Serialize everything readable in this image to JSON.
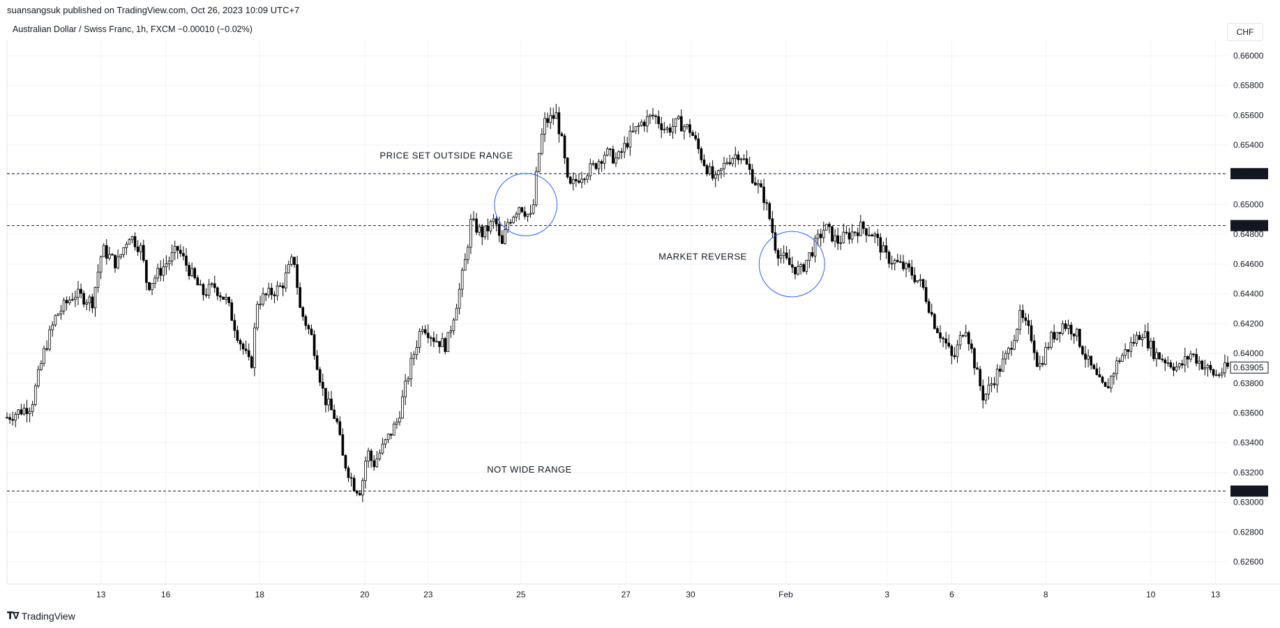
{
  "header": {
    "publisher": "suansangsuk published on TradingView.com, Oct 26, 2023 10:09 UTC+7",
    "symbol_line": "Australian Dollar / Swiss Franc, 1h, FXCM  −0.00010 (−0.02%)"
  },
  "currency_button": "CHF",
  "footer": {
    "brand": "TradingView",
    "logo_icon": "tradingview-logo-icon"
  },
  "chart_data": {
    "type": "candlestick",
    "title": "Australian Dollar / Swiss Franc, 1h, FXCM",
    "ylim": [
      0.6245,
      0.6615
    ],
    "y_ticks": [
      "0.62600",
      "0.62800",
      "0.63000",
      "0.63200",
      "0.63400",
      "0.63600",
      "0.63800",
      "0.64000",
      "0.64200",
      "0.64400",
      "0.64600",
      "0.64800",
      "0.65000",
      "0.65200",
      "0.65400",
      "0.65600",
      "0.65800",
      "0.66000"
    ],
    "x_ticks": [
      "13",
      "16",
      "18",
      "20",
      "23",
      "25",
      "27",
      "30",
      "Feb",
      "3",
      "6",
      "8",
      "10",
      "13"
    ],
    "x_tick_positions": [
      0.077,
      0.13,
      0.207,
      0.293,
      0.345,
      0.421,
      0.507,
      0.56,
      0.638,
      0.721,
      0.774,
      0.851,
      0.937,
      0.99
    ],
    "grid": true,
    "close_path": [
      [
        0.0,
        0.6357
      ],
      [
        0.02,
        0.6365
      ],
      [
        0.03,
        0.64
      ],
      [
        0.04,
        0.6425
      ],
      [
        0.055,
        0.644
      ],
      [
        0.07,
        0.6435
      ],
      [
        0.078,
        0.647
      ],
      [
        0.09,
        0.646
      ],
      [
        0.1,
        0.648
      ],
      [
        0.11,
        0.647
      ],
      [
        0.115,
        0.6445
      ],
      [
        0.13,
        0.646
      ],
      [
        0.14,
        0.647
      ],
      [
        0.15,
        0.6455
      ],
      [
        0.16,
        0.644
      ],
      [
        0.17,
        0.6445
      ],
      [
        0.18,
        0.6435
      ],
      [
        0.19,
        0.641
      ],
      [
        0.2,
        0.639
      ],
      [
        0.205,
        0.6435
      ],
      [
        0.225,
        0.6445
      ],
      [
        0.235,
        0.6465
      ],
      [
        0.24,
        0.643
      ],
      [
        0.25,
        0.641
      ],
      [
        0.26,
        0.637
      ],
      [
        0.27,
        0.6355
      ],
      [
        0.275,
        0.633
      ],
      [
        0.285,
        0.631
      ],
      [
        0.29,
        0.6308
      ],
      [
        0.295,
        0.6335
      ],
      [
        0.3,
        0.6325
      ],
      [
        0.31,
        0.634
      ],
      [
        0.32,
        0.6355
      ],
      [
        0.33,
        0.639
      ],
      [
        0.34,
        0.642
      ],
      [
        0.35,
        0.641
      ],
      [
        0.36,
        0.6405
      ],
      [
        0.37,
        0.644
      ],
      [
        0.375,
        0.646
      ],
      [
        0.38,
        0.6488
      ],
      [
        0.39,
        0.648
      ],
      [
        0.4,
        0.649
      ],
      [
        0.405,
        0.647
      ],
      [
        0.41,
        0.6488
      ],
      [
        0.42,
        0.65
      ],
      [
        0.43,
        0.649
      ],
      [
        0.435,
        0.653
      ],
      [
        0.44,
        0.6555
      ],
      [
        0.45,
        0.656
      ],
      [
        0.455,
        0.654
      ],
      [
        0.46,
        0.651
      ],
      [
        0.47,
        0.652
      ],
      [
        0.48,
        0.6525
      ],
      [
        0.49,
        0.6535
      ],
      [
        0.5,
        0.653
      ],
      [
        0.51,
        0.6545
      ],
      [
        0.52,
        0.6555
      ],
      [
        0.53,
        0.656
      ],
      [
        0.54,
        0.655
      ],
      [
        0.55,
        0.6555
      ],
      [
        0.56,
        0.655
      ],
      [
        0.57,
        0.653
      ],
      [
        0.58,
        0.6515
      ],
      [
        0.59,
        0.653
      ],
      [
        0.6,
        0.6535
      ],
      [
        0.61,
        0.652
      ],
      [
        0.62,
        0.6505
      ],
      [
        0.625,
        0.649
      ],
      [
        0.63,
        0.647
      ],
      [
        0.64,
        0.646
      ],
      [
        0.65,
        0.6455
      ],
      [
        0.66,
        0.647
      ],
      [
        0.67,
        0.6485
      ],
      [
        0.68,
        0.6475
      ],
      [
        0.69,
        0.648
      ],
      [
        0.7,
        0.6485
      ],
      [
        0.71,
        0.648
      ],
      [
        0.72,
        0.6465
      ],
      [
        0.73,
        0.646
      ],
      [
        0.74,
        0.6455
      ],
      [
        0.75,
        0.6445
      ],
      [
        0.76,
        0.642
      ],
      [
        0.77,
        0.6405
      ],
      [
        0.775,
        0.6395
      ],
      [
        0.785,
        0.642
      ],
      [
        0.795,
        0.6385
      ],
      [
        0.8,
        0.637
      ],
      [
        0.81,
        0.6385
      ],
      [
        0.82,
        0.64
      ],
      [
        0.83,
        0.6425
      ],
      [
        0.84,
        0.641
      ],
      [
        0.845,
        0.639
      ],
      [
        0.855,
        0.641
      ],
      [
        0.865,
        0.642
      ],
      [
        0.875,
        0.6415
      ],
      [
        0.885,
        0.6395
      ],
      [
        0.895,
        0.638
      ],
      [
        0.9,
        0.6375
      ],
      [
        0.91,
        0.6395
      ],
      [
        0.92,
        0.6405
      ],
      [
        0.93,
        0.6415
      ],
      [
        0.94,
        0.64
      ],
      [
        0.95,
        0.6395
      ],
      [
        0.96,
        0.639
      ],
      [
        0.97,
        0.64
      ],
      [
        0.98,
        0.6392
      ],
      [
        0.99,
        0.6385
      ],
      [
        1.0,
        0.63905
      ]
    ],
    "horizontal_lines": [
      {
        "price": 0.65208,
        "label": "0.65208"
      },
      {
        "price": 0.64859,
        "label": "0.64859"
      },
      {
        "price": 0.63075,
        "label": "0.63075"
      }
    ],
    "last_price": {
      "price": 0.63905,
      "label": "0.63905"
    },
    "annotations": [
      {
        "text": "PRICE SET OUTSIDE RANGE",
        "x": 0.36,
        "price": 0.6531
      },
      {
        "text": "MARKET REVERSE",
        "x": 0.57,
        "price": 0.6463
      },
      {
        "text": "NOT WIDE RANGE",
        "x": 0.428,
        "price": 0.632
      }
    ],
    "circles": [
      {
        "x": 0.425,
        "price": 0.65,
        "r_price": 0.0021
      },
      {
        "x": 0.643,
        "price": 0.646,
        "r_price": 0.0022
      }
    ]
  }
}
